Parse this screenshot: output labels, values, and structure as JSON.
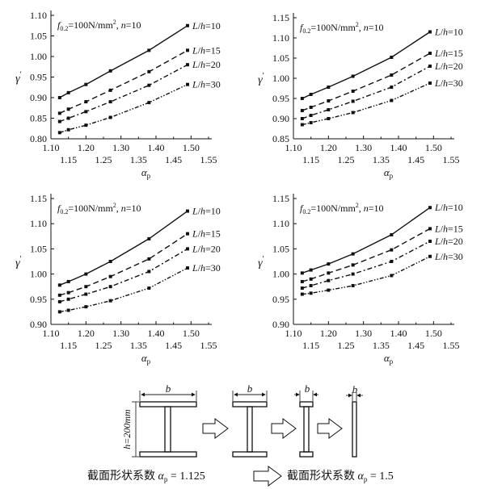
{
  "chart_data": [
    {
      "type": "line",
      "annotation": {
        "f": "f",
        "sub": "0.2",
        "eq": "=100N/mm",
        "sup": "2",
        "tail": ", ",
        "n": "n",
        "neq": "=10"
      },
      "xlabel": {
        "main": "α",
        "sub": "p"
      },
      "ylabel": {
        "main": "γ",
        "sup": "′"
      },
      "xlim": [
        1.1,
        1.55
      ],
      "ylim": [
        0.8,
        1.1
      ],
      "xticks_top": [
        "1.10",
        "1.20",
        "1.30",
        "1.40",
        "1.50"
      ],
      "xticks_bottom": [
        "1.15",
        "1.25",
        "1.35",
        "1.45",
        "1.55"
      ],
      "yticks": [
        "0.80",
        "0.85",
        "0.90",
        "0.95",
        "1.00",
        "1.05",
        "1.10"
      ],
      "x": [
        1.125,
        1.15,
        1.2,
        1.27,
        1.38,
        1.49
      ],
      "series": [
        {
          "name": "L/h=10",
          "style": "solid",
          "values": [
            0.9,
            0.912,
            0.932,
            0.965,
            1.015,
            1.075
          ]
        },
        {
          "name": "L/h=15",
          "style": "dash",
          "values": [
            0.862,
            0.872,
            0.89,
            0.918,
            0.963,
            1.015
          ]
        },
        {
          "name": "L/h=20",
          "style": "dashdot",
          "values": [
            0.842,
            0.85,
            0.866,
            0.89,
            0.93,
            0.98
          ]
        },
        {
          "name": "L/h=30",
          "style": "dashdotdot",
          "values": [
            0.815,
            0.822,
            0.833,
            0.852,
            0.888,
            0.932
          ]
        }
      ]
    },
    {
      "type": "line",
      "annotation": {
        "f": "f",
        "sub": "0.2",
        "eq": "=100N/mm",
        "sup": "2",
        "tail": ", ",
        "n": "n",
        "neq": "=10"
      },
      "xlabel": {
        "main": "α",
        "sub": "p"
      },
      "ylabel": {
        "main": "γ",
        "sup": "′"
      },
      "xlim": [
        1.1,
        1.55
      ],
      "ylim": [
        0.85,
        1.15
      ],
      "xticks_top": [
        "1.10",
        "1.20",
        "1.30",
        "1.40",
        "1.50"
      ],
      "xticks_bottom": [
        "1.15",
        "1.25",
        "1.35",
        "1.45",
        "1.55"
      ],
      "yticks": [
        "0.85",
        "0.90",
        "0.95",
        "1.00",
        "1.05",
        "1.10",
        "1.15"
      ],
      "x": [
        1.125,
        1.15,
        1.2,
        1.27,
        1.38,
        1.49
      ],
      "series": [
        {
          "name": "L/h=10",
          "style": "solid",
          "values": [
            0.95,
            0.96,
            0.978,
            1.005,
            1.052,
            1.115
          ]
        },
        {
          "name": "L/h=15",
          "style": "dash",
          "values": [
            0.92,
            0.928,
            0.944,
            0.968,
            1.008,
            1.062
          ]
        },
        {
          "name": "L/h=20",
          "style": "dashdot",
          "values": [
            0.9,
            0.908,
            0.922,
            0.943,
            0.978,
            1.03
          ]
        },
        {
          "name": "L/h=30",
          "style": "dashdotdot",
          "values": [
            0.885,
            0.89,
            0.9,
            0.915,
            0.945,
            0.988
          ]
        }
      ]
    },
    {
      "type": "line",
      "annotation": {
        "f": "f",
        "sub": "0.2",
        "eq": "=100N/mm",
        "sup": "2",
        "tail": ", ",
        "n": "n",
        "neq": "=10"
      },
      "xlabel": {
        "main": "α",
        "sub": "p"
      },
      "ylabel": {
        "main": "γ",
        "sup": "′"
      },
      "xlim": [
        1.1,
        1.55
      ],
      "ylim": [
        0.9,
        1.15
      ],
      "xticks_top": [
        "1.10",
        "1.20",
        "1.30",
        "1.40",
        "1.50"
      ],
      "xticks_bottom": [
        "1.15",
        "1.25",
        "1.35",
        "1.45",
        "1.55"
      ],
      "yticks": [
        "0.90",
        "0.95",
        "1.00",
        "1.05",
        "1.10",
        "1.15"
      ],
      "x": [
        1.125,
        1.15,
        1.2,
        1.27,
        1.38,
        1.49
      ],
      "series": [
        {
          "name": "L/h=10",
          "style": "solid",
          "values": [
            0.978,
            0.985,
            1.0,
            1.025,
            1.07,
            1.125
          ]
        },
        {
          "name": "L/h=15",
          "style": "dash",
          "values": [
            0.958,
            0.963,
            0.975,
            0.995,
            1.03,
            1.08
          ]
        },
        {
          "name": "L/h=20",
          "style": "dashdot",
          "values": [
            0.945,
            0.95,
            0.96,
            0.975,
            1.005,
            1.05
          ]
        },
        {
          "name": "L/h=30",
          "style": "dashdotdot",
          "values": [
            0.925,
            0.928,
            0.935,
            0.947,
            0.972,
            1.012
          ]
        }
      ]
    },
    {
      "type": "line",
      "annotation": {
        "f": "f",
        "sub": "0.2",
        "eq": "=100N/mm",
        "sup": "2",
        "tail": ", ",
        "n": "n",
        "neq": "=10"
      },
      "xlabel": {
        "main": "α",
        "sub": "p"
      },
      "ylabel": {
        "main": "γ",
        "sup": "′"
      },
      "xlim": [
        1.1,
        1.55
      ],
      "ylim": [
        0.9,
        1.15
      ],
      "xticks_top": [
        "1.10",
        "1.20",
        "1.30",
        "1.40",
        "1.50"
      ],
      "xticks_bottom": [
        "1.15",
        "1.25",
        "1.35",
        "1.45",
        "1.55"
      ],
      "yticks": [
        "0.90",
        "0.95",
        "1.00",
        "1.05",
        "1.10",
        "1.15"
      ],
      "x": [
        1.125,
        1.15,
        1.2,
        1.27,
        1.38,
        1.49
      ],
      "series": [
        {
          "name": "L/h=10",
          "style": "solid",
          "values": [
            1.002,
            1.008,
            1.02,
            1.04,
            1.078,
            1.132
          ]
        },
        {
          "name": "L/h=15",
          "style": "dash",
          "values": [
            0.985,
            0.99,
            1.002,
            1.018,
            1.048,
            1.09
          ]
        },
        {
          "name": "L/h=20",
          "style": "dashdot",
          "values": [
            0.972,
            0.977,
            0.987,
            1.0,
            1.025,
            1.065
          ]
        },
        {
          "name": "L/h=30",
          "style": "dashdotdot",
          "values": [
            0.96,
            0.962,
            0.968,
            0.977,
            0.997,
            1.035
          ]
        }
      ]
    }
  ],
  "diagram": {
    "width_label": "b",
    "height_label": "h=200mm",
    "caption_left": {
      "text": "截面形状系数 ",
      "alpha": "α",
      "sub": "p",
      "value": " = 1.125"
    },
    "caption_right": {
      "text": "截面形状系数 ",
      "alpha": "α",
      "sub": "p",
      "value": " = 1.5"
    }
  }
}
